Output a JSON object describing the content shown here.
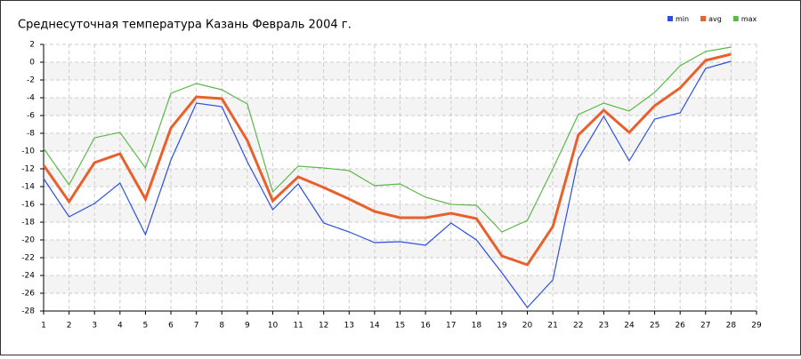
{
  "chart_data": {
    "type": "line",
    "title": "Среднесуточная температура Казань  Февраль 2004 г.",
    "x": [
      1,
      2,
      3,
      4,
      5,
      6,
      7,
      8,
      9,
      10,
      11,
      12,
      13,
      14,
      15,
      16,
      17,
      18,
      19,
      20,
      21,
      22,
      23,
      24,
      25,
      26,
      27,
      28
    ],
    "series": [
      {
        "name": "min",
        "color": "#2d4fe0",
        "values": [
          -13.1,
          -17.4,
          -15.9,
          -13.6,
          -19.4,
          -11.0,
          -4.6,
          -5.0,
          -11.2,
          -16.6,
          -13.7,
          -18.1,
          -19.1,
          -20.3,
          -20.2,
          -20.6,
          -18.1,
          -20.0,
          -23.7,
          -27.6,
          -24.5,
          -10.9,
          -6.1,
          -11.1,
          -6.4,
          -5.7,
          -0.7,
          0.1
        ]
      },
      {
        "name": "avg",
        "color": "#e8602c",
        "values": [
          -11.6,
          -15.7,
          -11.3,
          -10.3,
          -15.4,
          -7.4,
          -3.9,
          -4.1,
          -8.8,
          -15.6,
          -12.9,
          -14.1,
          -15.4,
          -16.8,
          -17.5,
          -17.5,
          -17.0,
          -17.6,
          -21.8,
          -22.8,
          -18.5,
          -8.2,
          -5.4,
          -7.9,
          -4.9,
          -2.9,
          0.2,
          0.9
        ]
      },
      {
        "name": "max",
        "color": "#5cb84a",
        "values": [
          -9.7,
          -13.8,
          -8.5,
          -7.9,
          -11.9,
          -3.5,
          -2.4,
          -3.1,
          -4.7,
          -14.6,
          -11.7,
          -11.9,
          -12.2,
          -13.9,
          -13.7,
          -15.2,
          -16.0,
          -16.1,
          -19.1,
          -17.8,
          -12.0,
          -5.9,
          -4.6,
          -5.5,
          -3.4,
          -0.4,
          1.2,
          1.7
        ]
      }
    ],
    "xlim": [
      1,
      29
    ],
    "xticks": [
      1,
      2,
      3,
      4,
      5,
      6,
      7,
      8,
      9,
      10,
      11,
      12,
      13,
      14,
      15,
      16,
      17,
      18,
      19,
      20,
      21,
      22,
      23,
      24,
      25,
      26,
      27,
      28,
      29
    ],
    "ylim": [
      -28,
      2
    ],
    "yticks": [
      -28,
      -26,
      -24,
      -22,
      -20,
      -18,
      -16,
      -14,
      -12,
      -10,
      -8,
      -6,
      -4,
      -2,
      0,
      2
    ],
    "grid": true,
    "legend": "top-right"
  }
}
